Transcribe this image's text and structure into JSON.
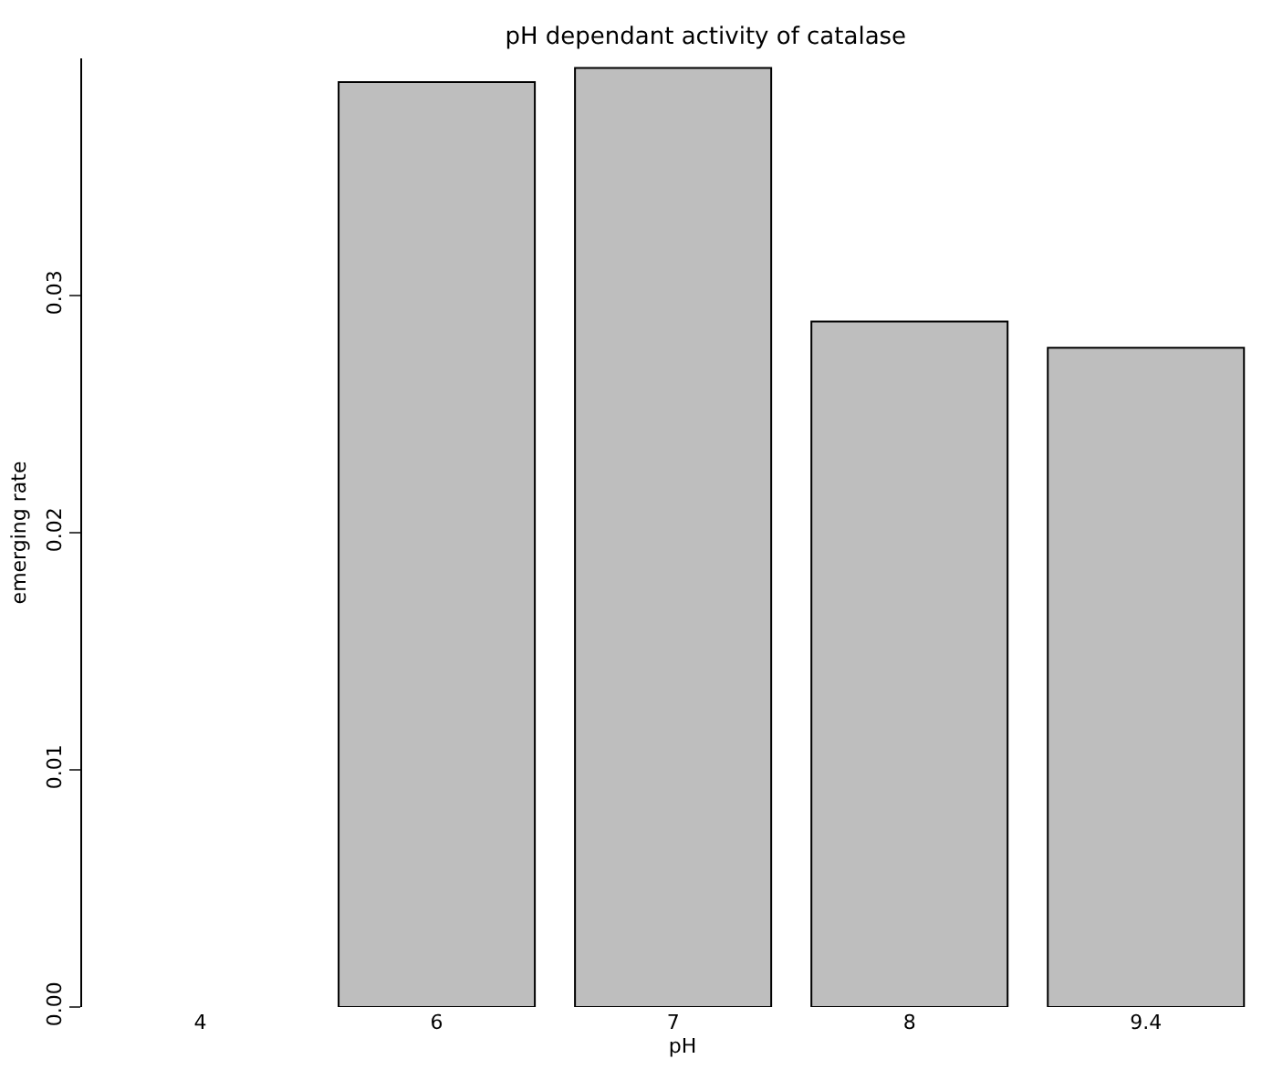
{
  "chart_data": {
    "type": "bar",
    "title": "pH dependant activity of catalase",
    "xlabel": "pH",
    "ylabel": "emerging rate",
    "categories": [
      "4",
      "6",
      "7",
      "8",
      "9.4"
    ],
    "values": [
      null,
      0.039,
      0.0396,
      0.0289,
      0.0278
    ],
    "color": "#bebebe",
    "ylim": [
      0,
      0.04
    ],
    "yticks": [
      {
        "value": 0,
        "label": "0.00"
      },
      {
        "value": 0.01,
        "label": "0.01"
      },
      {
        "value": 0.02,
        "label": "0.02"
      },
      {
        "value": 0.03,
        "label": "0.03"
      }
    ]
  }
}
